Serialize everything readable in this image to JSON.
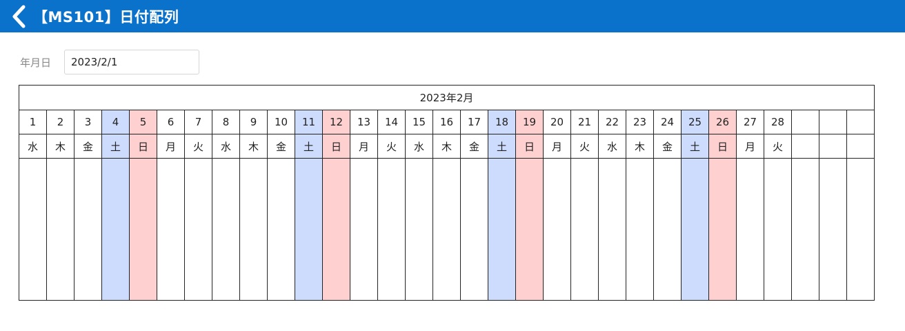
{
  "header": {
    "back_icon": "chevron-left-icon",
    "title": "【MS101】日付配列",
    "background_color": "#0b72cc"
  },
  "form": {
    "date_label": "年月日",
    "date_value": "2023/2/1"
  },
  "calendar": {
    "month_title": "2023年2月",
    "saturday_color": "#cddcfd",
    "sunday_color": "#ffd0d0",
    "total_columns": 31,
    "days": [
      {
        "date": "1",
        "weekday": "水"
      },
      {
        "date": "2",
        "weekday": "木"
      },
      {
        "date": "3",
        "weekday": "金"
      },
      {
        "date": "4",
        "weekday": "土"
      },
      {
        "date": "5",
        "weekday": "日"
      },
      {
        "date": "6",
        "weekday": "月"
      },
      {
        "date": "7",
        "weekday": "火"
      },
      {
        "date": "8",
        "weekday": "水"
      },
      {
        "date": "9",
        "weekday": "木"
      },
      {
        "date": "10",
        "weekday": "金"
      },
      {
        "date": "11",
        "weekday": "土"
      },
      {
        "date": "12",
        "weekday": "日"
      },
      {
        "date": "13",
        "weekday": "月"
      },
      {
        "date": "14",
        "weekday": "火"
      },
      {
        "date": "15",
        "weekday": "水"
      },
      {
        "date": "16",
        "weekday": "木"
      },
      {
        "date": "17",
        "weekday": "金"
      },
      {
        "date": "18",
        "weekday": "土"
      },
      {
        "date": "19",
        "weekday": "日"
      },
      {
        "date": "20",
        "weekday": "月"
      },
      {
        "date": "21",
        "weekday": "火"
      },
      {
        "date": "22",
        "weekday": "水"
      },
      {
        "date": "23",
        "weekday": "木"
      },
      {
        "date": "24",
        "weekday": "金"
      },
      {
        "date": "25",
        "weekday": "土"
      },
      {
        "date": "26",
        "weekday": "日"
      },
      {
        "date": "27",
        "weekday": "月"
      },
      {
        "date": "28",
        "weekday": "火"
      }
    ]
  }
}
